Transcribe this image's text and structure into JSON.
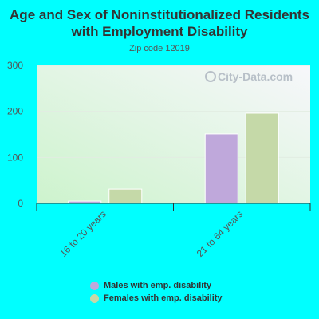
{
  "chart_data": {
    "type": "bar",
    "title": "Age and Sex of Noninstitutionalized Residents with Employment Disability",
    "subtitle": "Zip code 12019",
    "categories": [
      "16 to 20 years",
      "21 to 64 years"
    ],
    "series": [
      {
        "name": "Males with emp. disability",
        "values": [
          5,
          151
        ],
        "color": "#bfa8db"
      },
      {
        "name": "Females with emp. disability",
        "values": [
          31,
          196
        ],
        "color": "#c5d9a8"
      }
    ],
    "ylim": [
      0,
      300
    ],
    "yticks": [
      0,
      100,
      200,
      300
    ],
    "grid": true,
    "legend": "bottom",
    "watermark": "City-Data.com"
  }
}
